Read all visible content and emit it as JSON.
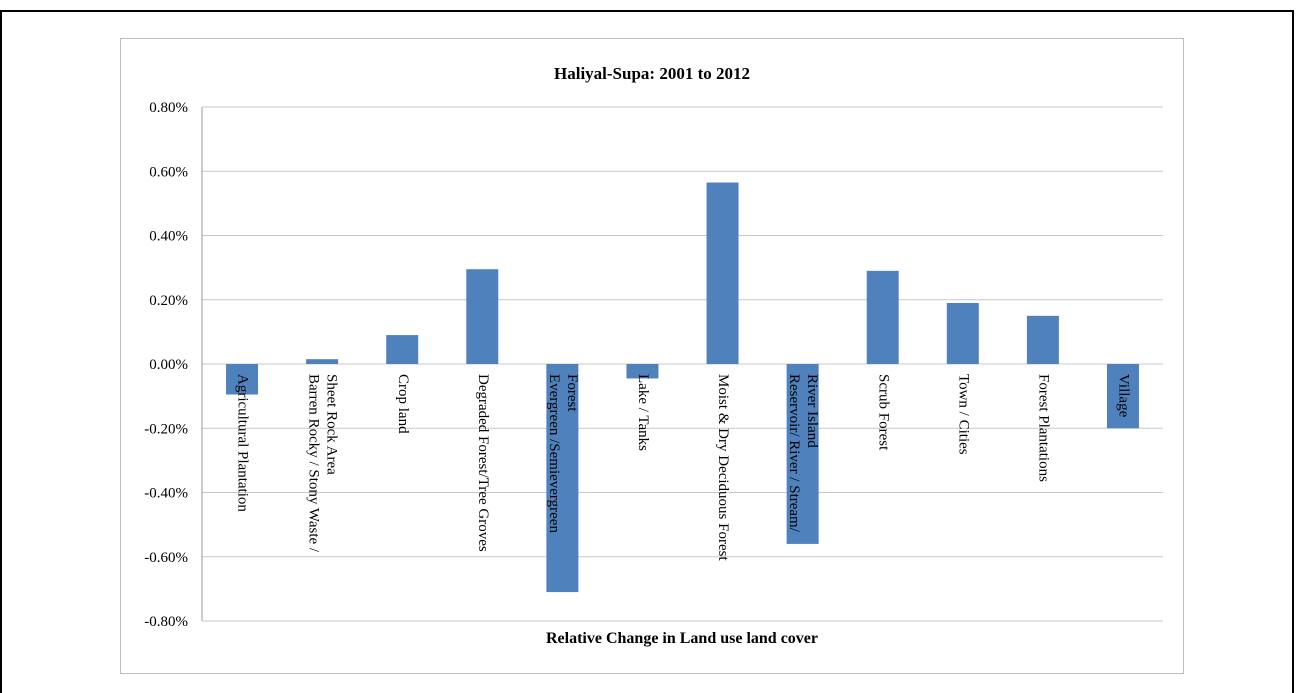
{
  "chart_data": {
    "type": "bar",
    "title": "Haliyal-Supa:  2001 to 2012",
    "xlabel": "Relative Change in Land use land cover",
    "ylabel": "",
    "ylim": [
      -0.8,
      0.8
    ],
    "yticks": [
      0.8,
      0.6,
      0.4,
      0.2,
      0.0,
      -0.2,
      -0.4,
      -0.6,
      -0.8
    ],
    "ytick_labels": [
      "0.80%",
      "0.60%",
      "0.40%",
      "0.20%",
      "0.00%",
      "-0.20%",
      "-0.40%",
      "-0.60%",
      "-0.80%"
    ],
    "grid": true,
    "legend": "none",
    "bar_color": "#4f81bd",
    "categories": [
      [
        "Agricultural Plantation"
      ],
      [
        "Barren Rocky / Stony Waste /",
        "Sheet Rock Area"
      ],
      [
        "Crop land"
      ],
      [
        "Degraded Forest/Tree Groves"
      ],
      [
        "Evergreen /Semievergreen",
        "Forest"
      ],
      [
        "Lake / Tanks"
      ],
      [
        "Moist & Dry Deciduous Forest"
      ],
      [
        "Reservoir/ River / Stream/",
        "River Island"
      ],
      [
        "Scrub Forest"
      ],
      [
        "Town / Cities"
      ],
      [
        "Forest Plantations"
      ],
      [
        "Village"
      ]
    ],
    "values": [
      -0.095,
      0.015,
      0.09,
      0.295,
      -0.71,
      -0.045,
      0.565,
      -0.56,
      0.29,
      0.19,
      0.15,
      -0.2
    ]
  }
}
